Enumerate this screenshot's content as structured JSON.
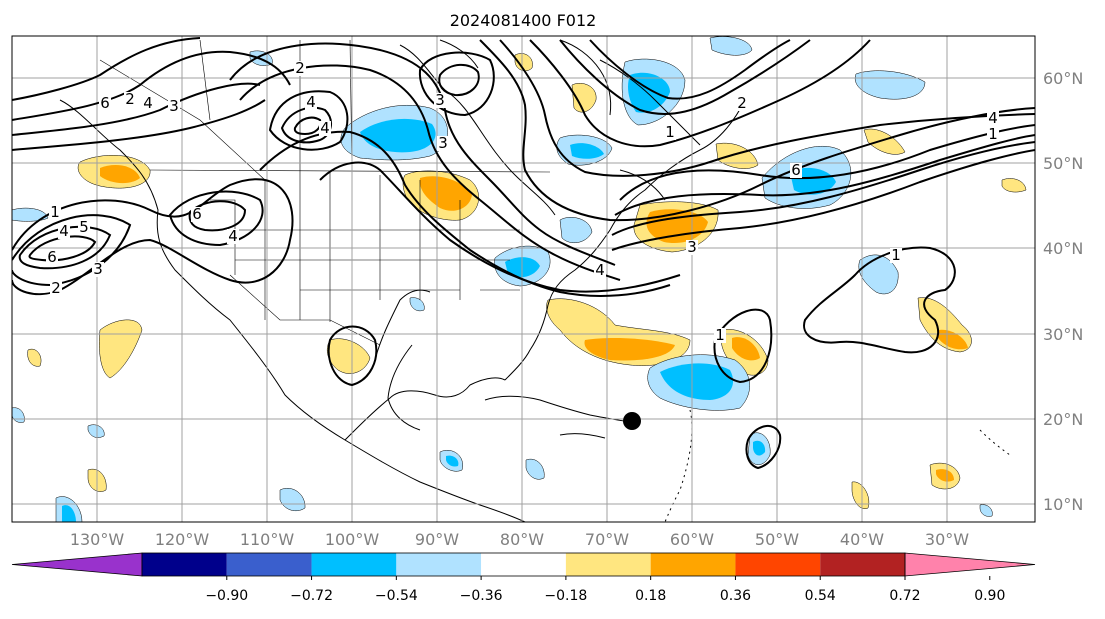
{
  "title": "2024081400 F012",
  "lat_labels": [
    "60°N",
    "50°N",
    "40°N",
    "30°N",
    "20°N",
    "10°N"
  ],
  "lon_labels": [
    "130°W",
    "120°W",
    "110°W",
    "100°W",
    "90°W",
    "80°W",
    "70°W",
    "60°W",
    "50°W",
    "40°W",
    "30°W"
  ],
  "colorbar": {
    "colors": [
      "#9932cc",
      "#00008b",
      "#3a5fcd",
      "#00bfff",
      "#b0e2ff",
      "#ffffff",
      "#ffe680",
      "#ffa500",
      "#ff4500",
      "#b22222",
      "#ff82ab"
    ],
    "labels": [
      "−0.90",
      "−0.72",
      "−0.54",
      "−0.36",
      "−0.18",
      "0.18",
      "0.36",
      "0.54",
      "0.72",
      "0.90"
    ],
    "extend": "both"
  },
  "contour_labels": [
    "6",
    "4",
    "3",
    "2",
    "4",
    "6",
    "3",
    "4",
    "1",
    "6",
    "4",
    "5",
    "2",
    "3",
    "1",
    "2",
    "4",
    "3",
    "6",
    "4",
    "1",
    "1",
    "1",
    "2",
    "3",
    "4"
  ],
  "colors": {
    "light_blue": "#b0e2ff",
    "blue": "#00bfff",
    "yellow": "#ffe680",
    "orange": "#ffa500"
  },
  "marker": "storm-position-marker"
}
